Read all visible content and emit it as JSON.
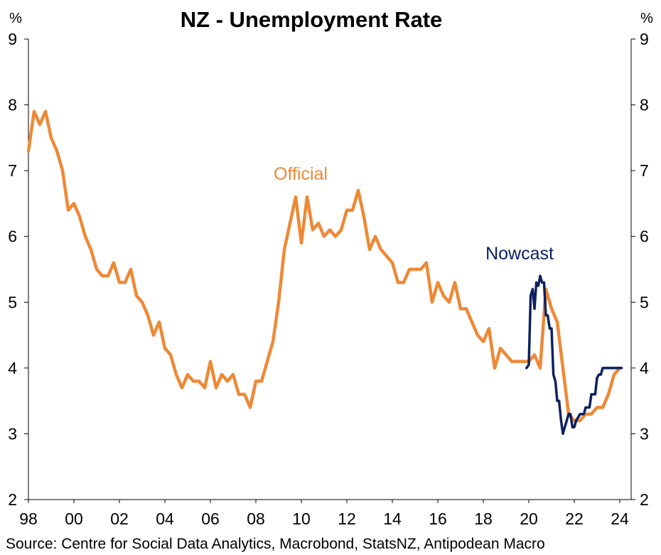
{
  "chart_data": {
    "type": "line",
    "title": "NZ - Unemployment Rate",
    "ylabel_left": "%",
    "ylabel_right": "%",
    "ylim": [
      2,
      9
    ],
    "yticks": [
      2,
      3,
      4,
      5,
      6,
      7,
      8,
      9
    ],
    "xlim": [
      1998,
      2024.5
    ],
    "xticks": [
      {
        "year": 1998,
        "label": "98"
      },
      {
        "year": 2000,
        "label": "00"
      },
      {
        "year": 2002,
        "label": "02"
      },
      {
        "year": 2004,
        "label": "04"
      },
      {
        "year": 2006,
        "label": "06"
      },
      {
        "year": 2008,
        "label": "08"
      },
      {
        "year": 2010,
        "label": "10"
      },
      {
        "year": 2012,
        "label": "12"
      },
      {
        "year": 2014,
        "label": "14"
      },
      {
        "year": 2016,
        "label": "16"
      },
      {
        "year": 2018,
        "label": "18"
      },
      {
        "year": 2020,
        "label": "20"
      },
      {
        "year": 2022,
        "label": "22"
      },
      {
        "year": 2024,
        "label": "24"
      }
    ],
    "source": "Source: Centre for Social Data Analytics, Macrobond, StatsNZ, Antipodean Macro",
    "series": [
      {
        "name": "Official",
        "color": "#ED8936",
        "x": [
          1998.0,
          1998.25,
          1998.5,
          1998.75,
          1999.0,
          1999.25,
          1999.5,
          1999.75,
          2000.0,
          2000.25,
          2000.5,
          2000.75,
          2001.0,
          2001.25,
          2001.5,
          2001.75,
          2002.0,
          2002.25,
          2002.5,
          2002.75,
          2003.0,
          2003.25,
          2003.5,
          2003.75,
          2004.0,
          2004.25,
          2004.5,
          2004.75,
          2005.0,
          2005.25,
          2005.5,
          2005.75,
          2006.0,
          2006.25,
          2006.5,
          2006.75,
          2007.0,
          2007.25,
          2007.5,
          2007.75,
          2008.0,
          2008.25,
          2008.5,
          2008.75,
          2009.0,
          2009.25,
          2009.5,
          2009.75,
          2010.0,
          2010.25,
          2010.5,
          2010.75,
          2011.0,
          2011.25,
          2011.5,
          2011.75,
          2012.0,
          2012.25,
          2012.5,
          2012.75,
          2013.0,
          2013.25,
          2013.5,
          2013.75,
          2014.0,
          2014.25,
          2014.5,
          2014.75,
          2015.0,
          2015.25,
          2015.5,
          2015.75,
          2016.0,
          2016.25,
          2016.5,
          2016.75,
          2017.0,
          2017.25,
          2017.5,
          2017.75,
          2018.0,
          2018.25,
          2018.5,
          2018.75,
          2019.0,
          2019.25,
          2019.5,
          2019.75,
          2020.0,
          2020.25,
          2020.5,
          2020.75,
          2021.0,
          2021.25,
          2021.5,
          2021.75,
          2022.0,
          2022.25,
          2022.5,
          2022.75,
          2023.0,
          2023.25,
          2023.5,
          2023.75,
          2024.0
        ],
        "values": [
          7.3,
          7.9,
          7.7,
          7.9,
          7.5,
          7.3,
          7.0,
          6.4,
          6.5,
          6.3,
          6.0,
          5.8,
          5.5,
          5.4,
          5.4,
          5.6,
          5.3,
          5.3,
          5.5,
          5.1,
          5.0,
          4.8,
          4.5,
          4.7,
          4.3,
          4.2,
          3.9,
          3.7,
          3.9,
          3.8,
          3.8,
          3.7,
          4.1,
          3.7,
          3.9,
          3.8,
          3.9,
          3.6,
          3.6,
          3.4,
          3.8,
          3.8,
          4.1,
          4.4,
          5.0,
          5.8,
          6.2,
          6.6,
          5.9,
          6.6,
          6.1,
          6.2,
          6.0,
          6.1,
          6.0,
          6.1,
          6.4,
          6.4,
          6.7,
          6.3,
          5.8,
          6.0,
          5.8,
          5.7,
          5.6,
          5.3,
          5.3,
          5.5,
          5.5,
          5.5,
          5.6,
          5.0,
          5.3,
          5.1,
          5.0,
          5.3,
          4.9,
          4.9,
          4.7,
          4.5,
          4.4,
          4.6,
          4.0,
          4.3,
          4.2,
          4.1,
          4.1,
          4.1,
          4.1,
          4.2,
          4.0,
          5.2,
          4.9,
          4.7,
          4.0,
          3.3,
          3.2,
          3.2,
          3.3,
          3.3,
          3.4,
          3.4,
          3.6,
          3.9,
          4.0
        ]
      },
      {
        "name": "Nowcast",
        "color": "#0D2160",
        "x": [
          2019.9,
          2020.0,
          2020.08,
          2020.17,
          2020.25,
          2020.33,
          2020.42,
          2020.5,
          2020.58,
          2020.67,
          2020.75,
          2020.83,
          2020.92,
          2021.0,
          2021.08,
          2021.17,
          2021.25,
          2021.33,
          2021.42,
          2021.5,
          2021.58,
          2021.67,
          2021.75,
          2021.83,
          2021.92,
          2022.0,
          2022.08,
          2022.17,
          2022.25,
          2022.33,
          2022.42,
          2022.5,
          2022.58,
          2022.67,
          2022.75,
          2022.83,
          2022.92,
          2023.0,
          2023.08,
          2023.17,
          2023.25,
          2023.33,
          2023.42,
          2023.5,
          2023.58,
          2023.67,
          2023.75,
          2023.83,
          2023.92,
          2024.0,
          2024.08
        ],
        "values": [
          4.0,
          4.05,
          5.1,
          5.2,
          4.9,
          5.3,
          5.25,
          5.4,
          5.3,
          5.3,
          4.8,
          4.8,
          4.6,
          4.6,
          3.9,
          3.8,
          3.5,
          3.5,
          3.2,
          3.0,
          3.1,
          3.2,
          3.3,
          3.3,
          3.1,
          3.1,
          3.2,
          3.25,
          3.3,
          3.3,
          3.3,
          3.4,
          3.4,
          3.4,
          3.6,
          3.6,
          3.6,
          3.85,
          3.9,
          3.9,
          4.0,
          4.0,
          4.0,
          4.0,
          4.0,
          4.0,
          4.0,
          4.0,
          4.0,
          4.0,
          4.0
        ]
      }
    ],
    "annotations": [
      {
        "text": "Official",
        "color": "#ED8936"
      },
      {
        "text": "Nowcast",
        "color": "#0D2160"
      }
    ]
  }
}
